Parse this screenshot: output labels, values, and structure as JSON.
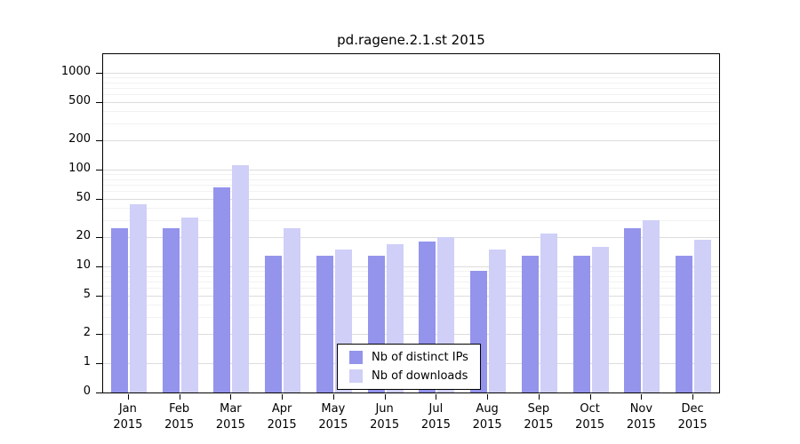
{
  "chart_data": {
    "type": "bar",
    "title": "pd.ragene.2.1.st 2015",
    "scale": "log",
    "grid": true,
    "legend_position": "bottom-center",
    "xlabel": "",
    "ylabel": "",
    "yticks": [
      0,
      1,
      2,
      5,
      10,
      20,
      50,
      100,
      200,
      500,
      1000
    ],
    "ylim": [
      0,
      1000
    ],
    "categories": [
      "Jan 2015",
      "Feb 2015",
      "Mar 2015",
      "Apr 2015",
      "May 2015",
      "Jun 2015",
      "Jul 2015",
      "Aug 2015",
      "Sep 2015",
      "Oct 2015",
      "Nov 2015",
      "Dec 2015"
    ],
    "series": [
      {
        "key": "distinct-ips",
        "name": "Nb of distinct IPs",
        "color": "#9494ec",
        "values": [
          25,
          25,
          65,
          13,
          13,
          13,
          18,
          9,
          13,
          13,
          25,
          13
        ]
      },
      {
        "key": "downloads",
        "name": "Nb of downloads",
        "color": "#cfcff8",
        "values": [
          44,
          32,
          110,
          25,
          15,
          17,
          20,
          15,
          22,
          16,
          30,
          19
        ]
      }
    ],
    "colors": {
      "major_grid": "#dcdcdc",
      "minor_grid": "#f2f2f2",
      "axis": "#000000",
      "background": "#ffffff"
    }
  }
}
